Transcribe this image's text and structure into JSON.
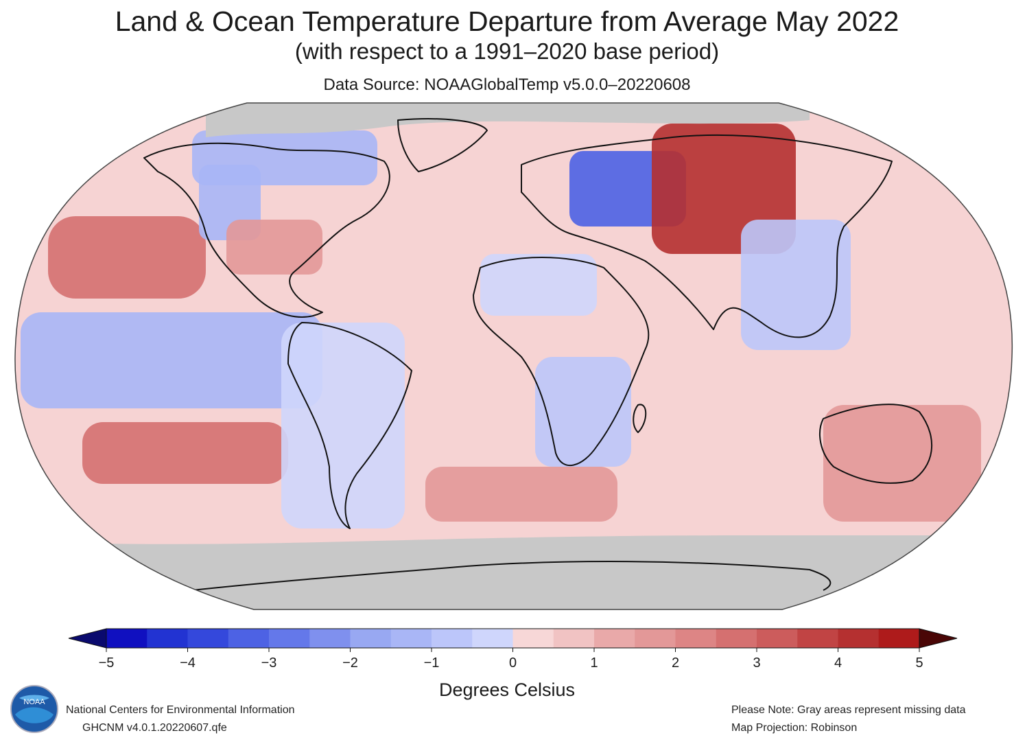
{
  "header": {
    "title": "Land & Ocean Temperature Departure from Average May 2022",
    "subtitle": "(with respect to a 1991–2020 base period)",
    "source": "Data Source: NOAAGlobalTemp v5.0.0–20220608"
  },
  "map": {
    "projection": "Robinson",
    "missing_color": "#c8c8c8",
    "regions": [
      {
        "name": "arctic-canada",
        "value": -1.5
      },
      {
        "name": "north-pacific",
        "value": 2.5
      },
      {
        "name": "eastern-north-america",
        "value": 1.5
      },
      {
        "name": "western-north-america",
        "value": -1.5
      },
      {
        "name": "tropical-pacific",
        "value": -1.5
      },
      {
        "name": "south-pacific",
        "value": 2.5
      },
      {
        "name": "south-america",
        "value": -0.5
      },
      {
        "name": "eastern-europe-russia",
        "value": -3.5
      },
      {
        "name": "siberia",
        "value": 4.0
      },
      {
        "name": "east-asia",
        "value": -1.0
      },
      {
        "name": "north-africa",
        "value": -0.5
      },
      {
        "name": "southern-africa",
        "value": -0.8
      },
      {
        "name": "australia",
        "value": 1.5
      },
      {
        "name": "southern-ocean",
        "value": 1.5
      }
    ]
  },
  "colorbar": {
    "min": -5,
    "max": 5,
    "ticks": [
      "−5",
      "−4",
      "−3",
      "−2",
      "−1",
      "0",
      "1",
      "2",
      "3",
      "4",
      "5"
    ],
    "colors": [
      "#1010c0",
      "#2233d2",
      "#3448dc",
      "#4d62e4",
      "#6478ea",
      "#7f90ee",
      "#98a8f2",
      "#a9b6f6",
      "#bcc6fa",
      "#cfd6fc",
      "#f7d7d7",
      "#f1c3c3",
      "#e9a9a9",
      "#e39898",
      "#dd8585",
      "#d57070",
      "#cc5c5c",
      "#c14444",
      "#b53030",
      "#ae1b1b"
    ],
    "under_color": "#0a0a6e",
    "over_color": "#4a0606",
    "label": "Degrees Celsius"
  },
  "footer": {
    "org": "National Centers for Environmental Information",
    "dataset": "GHCNM v4.0.1.20220607.qfe",
    "note": "Please Note: Gray areas represent missing data",
    "projection": "Map Projection: Robinson",
    "logo_text": "NOAA"
  }
}
